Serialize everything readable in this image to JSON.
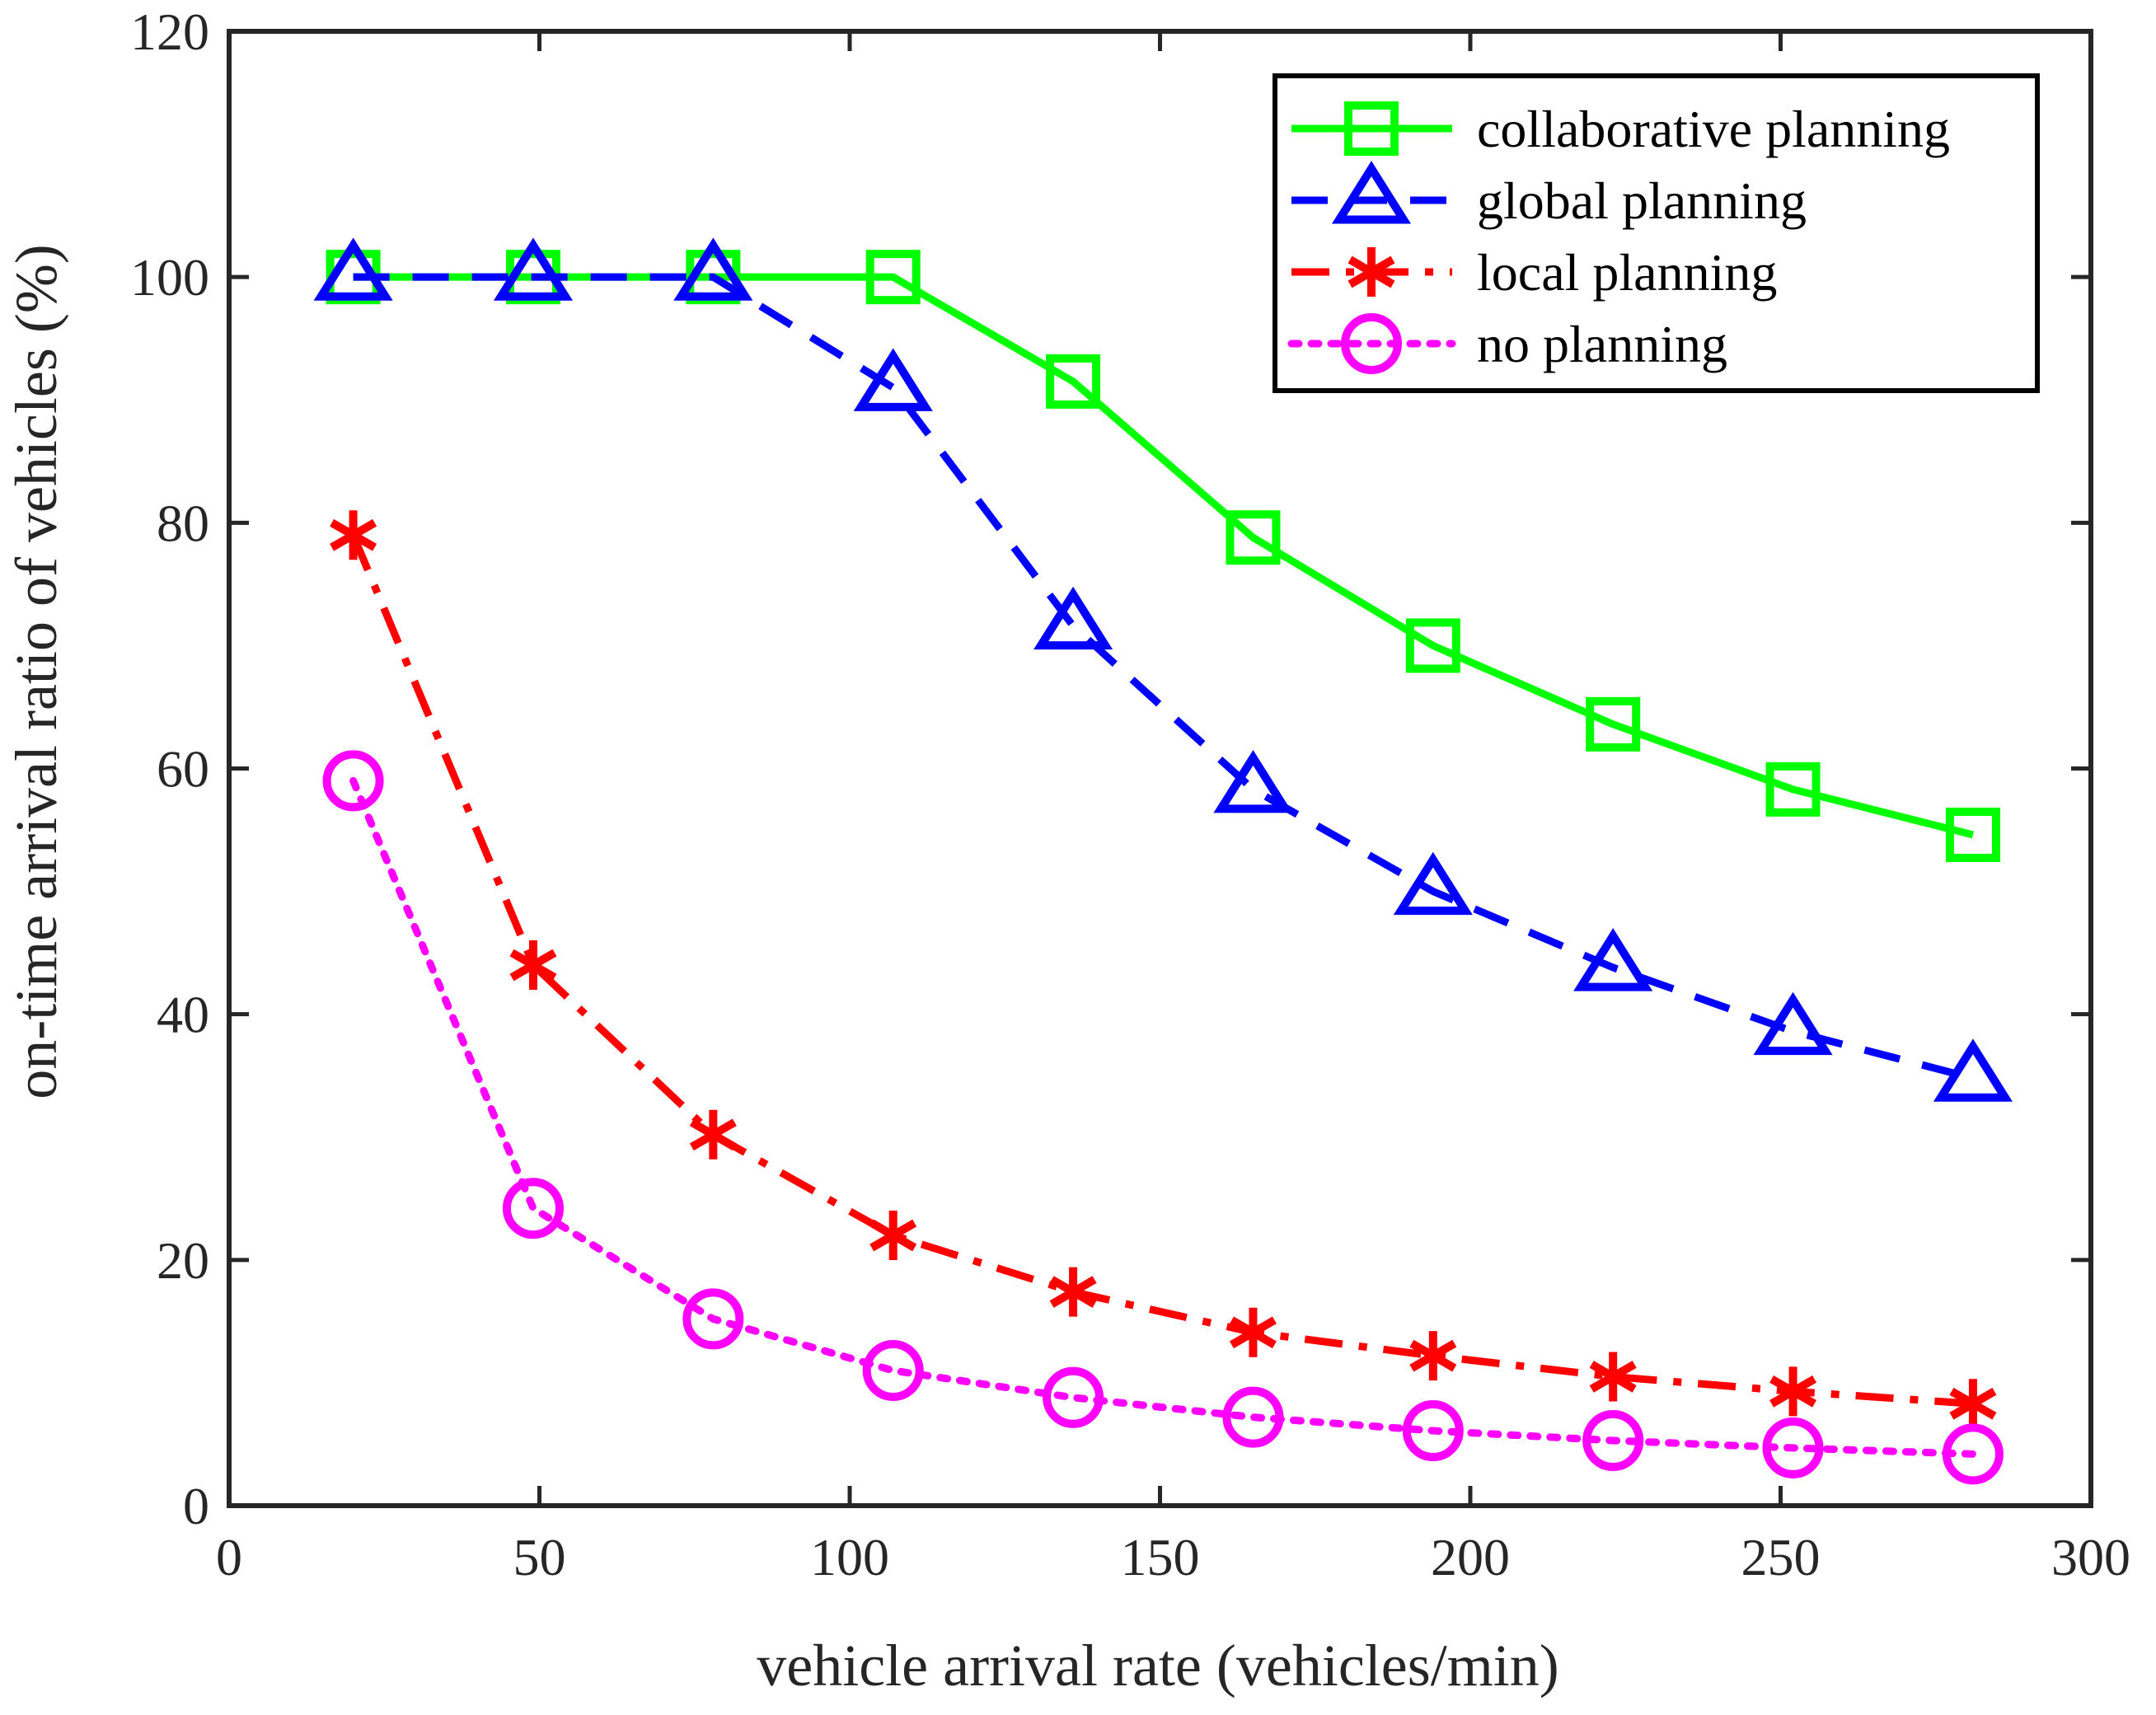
{
  "chart_data": {
    "type": "line",
    "title": "",
    "xlabel": "vehicle arrival rate (vehicles/min)",
    "ylabel": "on-time arrival ratio of vehicles (%)",
    "xlim": [
      0,
      300
    ],
    "ylim": [
      0,
      120
    ],
    "xticks": [
      0,
      50,
      100,
      150,
      200,
      250,
      300
    ],
    "yticks": [
      0,
      20,
      40,
      60,
      80,
      100,
      120
    ],
    "x": [
      20,
      49,
      78,
      107,
      136,
      165,
      194,
      223,
      252,
      281
    ],
    "legend_position": "top-right",
    "series": [
      {
        "name": "collaborative planning",
        "color": "#00ff00",
        "marker": "square",
        "line": "solid",
        "values": [
          100,
          100,
          100,
          100,
          91.5,
          78.8,
          70.0,
          63.6,
          58.3,
          54.6
        ]
      },
      {
        "name": "global planning",
        "color": "#0000ff",
        "marker": "triangle",
        "line": "dashed",
        "values": [
          100,
          100,
          100,
          91.0,
          71.6,
          58.3,
          50.0,
          43.8,
          38.6,
          34.8
        ]
      },
      {
        "name": "local planning",
        "color": "#ff0000",
        "marker": "asterisk",
        "line": "dashdot",
        "values": [
          79.0,
          44.0,
          30.2,
          22.0,
          17.4,
          14.1,
          12.2,
          10.5,
          9.3,
          8.3
        ]
      },
      {
        "name": "no planning",
        "color": "#ff00ff",
        "marker": "circle",
        "line": "dotted",
        "values": [
          59.0,
          24.2,
          15.2,
          11.0,
          8.8,
          7.2,
          6.1,
          5.3,
          4.7,
          4.2
        ]
      }
    ]
  }
}
